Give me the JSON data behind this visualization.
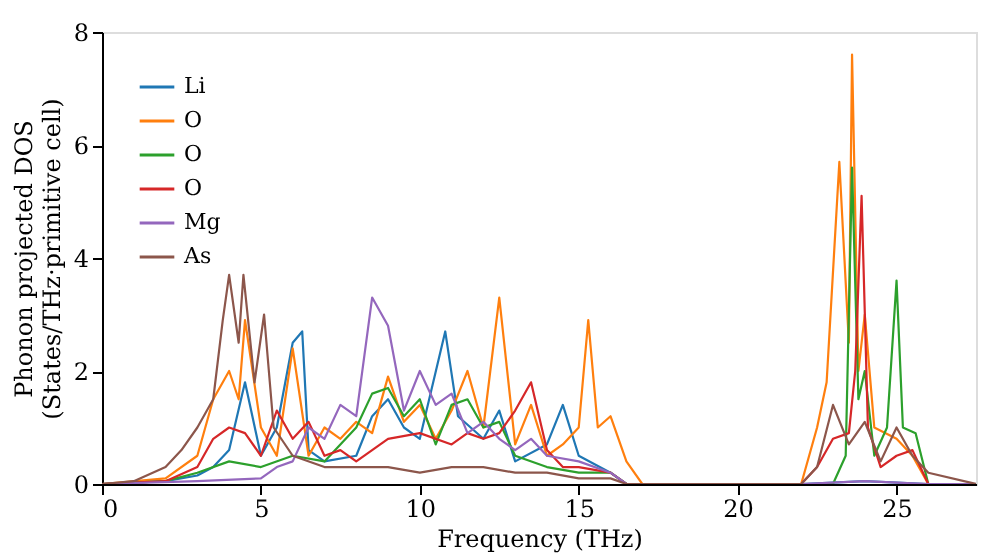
{
  "chart_data": {
    "type": "line",
    "xlabel": "Frequency (THz)",
    "ylabel": "Phonon projected DOS\n(States/THz·primitive cell)",
    "xlim": [
      0,
      27.5
    ],
    "ylim": [
      0,
      8
    ],
    "xticks": [
      0,
      5,
      10,
      15,
      20,
      25
    ],
    "yticks": [
      0,
      2,
      4,
      6,
      8
    ],
    "grid": false,
    "legend": "top left",
    "line_style": "solid",
    "marker": "none",
    "series": [
      {
        "name": "Li",
        "color": "#1f77b4",
        "x": [
          0,
          2,
          3,
          3.5,
          4,
          4.5,
          5,
          5.5,
          6,
          6.3,
          6.5,
          7,
          8,
          8.5,
          9,
          9.5,
          10,
          10.8,
          11.2,
          12,
          12.5,
          13,
          14,
          14.5,
          15,
          16,
          16.5,
          22,
          24,
          26,
          27.5
        ],
        "values": [
          0,
          0.05,
          0.15,
          0.3,
          0.6,
          1.8,
          0.5,
          1.0,
          2.5,
          2.7,
          0.6,
          0.4,
          0.5,
          1.2,
          1.5,
          1.0,
          0.8,
          2.7,
          1.2,
          0.8,
          1.3,
          0.4,
          0.7,
          1.4,
          0.5,
          0.2,
          0,
          0,
          0.05,
          0,
          0
        ]
      },
      {
        "name": "O",
        "color": "#ff7f0e",
        "x": [
          0,
          2,
          3,
          3.5,
          4,
          4.3,
          4.5,
          5,
          5.5,
          6,
          6.5,
          7,
          7.5,
          8,
          8.5,
          9,
          9.5,
          10,
          10.5,
          11,
          11.5,
          12,
          12.5,
          13,
          13.5,
          14,
          14.5,
          15,
          15.3,
          15.6,
          16,
          16.5,
          17,
          22,
          22.5,
          22.8,
          23.2,
          23.5,
          23.6,
          23.8,
          24,
          24.3,
          25,
          25.5,
          26,
          27.5
        ],
        "values": [
          0,
          0.1,
          0.5,
          1.5,
          2.0,
          1.5,
          2.9,
          1.0,
          0.5,
          2.4,
          0.5,
          1.0,
          0.8,
          1.1,
          0.9,
          1.9,
          1.1,
          1.4,
          0.8,
          1.3,
          2.0,
          1.0,
          3.3,
          0.7,
          1.4,
          0.5,
          0.7,
          1.0,
          2.9,
          1.0,
          1.2,
          0.4,
          0,
          0,
          1.0,
          1.8,
          5.7,
          2.5,
          7.6,
          2.0,
          3.0,
          1.0,
          0.8,
          0.5,
          0,
          0
        ]
      },
      {
        "name": "O",
        "color": "#2ca02c",
        "x": [
          0,
          2,
          3,
          4,
          5,
          6,
          7,
          8,
          8.5,
          9,
          9.5,
          10,
          10.5,
          11,
          11.5,
          12,
          12.5,
          13,
          14,
          15,
          16,
          16.5,
          23,
          23.4,
          23.6,
          23.8,
          24,
          24.3,
          24.7,
          25,
          25.2,
          25.6,
          26,
          27.5
        ],
        "values": [
          0,
          0.05,
          0.2,
          0.4,
          0.3,
          0.5,
          0.4,
          1.0,
          1.6,
          1.7,
          1.2,
          1.5,
          0.7,
          1.4,
          1.5,
          1.0,
          1.1,
          0.5,
          0.3,
          0.2,
          0.2,
          0,
          0,
          0.5,
          5.6,
          1.5,
          2.0,
          0.5,
          1.0,
          3.6,
          1.0,
          0.9,
          0,
          0
        ]
      },
      {
        "name": "O",
        "color": "#d62728",
        "x": [
          0,
          2,
          3,
          3.5,
          4,
          4.5,
          5,
          5.5,
          6,
          6.5,
          7,
          7.5,
          8,
          9,
          10,
          11,
          11.5,
          12,
          12.5,
          13,
          13.5,
          14,
          14.5,
          15,
          16,
          16.5,
          22,
          22.5,
          23,
          23.5,
          23.7,
          23.9,
          24.1,
          24.5,
          25,
          25.5,
          26,
          27.5
        ],
        "values": [
          0,
          0.05,
          0.3,
          0.8,
          1.0,
          0.9,
          0.5,
          1.3,
          0.8,
          1.1,
          0.5,
          0.6,
          0.4,
          0.8,
          0.9,
          0.7,
          0.9,
          0.8,
          0.9,
          1.3,
          1.8,
          0.6,
          0.3,
          0.3,
          0.2,
          0,
          0,
          0.3,
          0.8,
          0.9,
          2.0,
          5.1,
          1.0,
          0.3,
          0.5,
          0.6,
          0,
          0
        ]
      },
      {
        "name": "Mg",
        "color": "#9467bd",
        "x": [
          0,
          3,
          5,
          5.5,
          6,
          6.5,
          7,
          7.5,
          8,
          8.5,
          9,
          9.5,
          10,
          10.5,
          11,
          11.5,
          12,
          12.5,
          13,
          13.5,
          14,
          15,
          16,
          16.5,
          22,
          24,
          26,
          27.5
        ],
        "values": [
          0,
          0.05,
          0.1,
          0.3,
          0.4,
          1.0,
          0.8,
          1.4,
          1.2,
          3.3,
          2.8,
          1.3,
          2.0,
          1.4,
          1.6,
          0.9,
          1.1,
          0.8,
          0.6,
          0.8,
          0.5,
          0.4,
          0.2,
          0,
          0,
          0.05,
          0,
          0
        ]
      },
      {
        "name": "As",
        "color": "#8c564b",
        "x": [
          0,
          1,
          2,
          2.5,
          3,
          3.5,
          3.8,
          4.0,
          4.3,
          4.45,
          4.8,
          5.1,
          5.4,
          6,
          7,
          8,
          9,
          10,
          11,
          12,
          13,
          14,
          15,
          16,
          16.5,
          22,
          22.5,
          23,
          23.5,
          24,
          24.5,
          25,
          25.5,
          26,
          27.5
        ],
        "values": [
          0,
          0.05,
          0.3,
          0.6,
          1.0,
          1.5,
          2.9,
          3.7,
          2.5,
          3.7,
          1.8,
          3.0,
          1.0,
          0.5,
          0.3,
          0.3,
          0.3,
          0.2,
          0.3,
          0.3,
          0.2,
          0.2,
          0.1,
          0.1,
          0,
          0,
          0.3,
          1.4,
          0.7,
          1.1,
          0.4,
          1.0,
          0.5,
          0.2,
          0
        ]
      }
    ]
  }
}
